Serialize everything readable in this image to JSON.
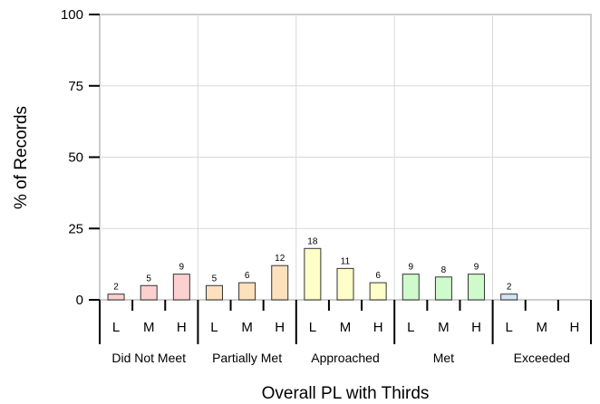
{
  "chart_data": {
    "type": "bar",
    "xlabel": "Overall PL with Thirds",
    "ylabel": "% of Records",
    "ylim": [
      0,
      100
    ],
    "yticks": [
      "0",
      "25",
      "50",
      "75",
      "100"
    ],
    "grid": true,
    "groups": [
      {
        "name": "Did Not Meet",
        "color": "#fdd0d0",
        "bars": [
          {
            "label": "L",
            "value": 2
          },
          {
            "label": "M",
            "value": 5
          },
          {
            "label": "H",
            "value": 9
          }
        ]
      },
      {
        "name": "Partially Met",
        "color": "#fde0bc",
        "bars": [
          {
            "label": "L",
            "value": 5
          },
          {
            "label": "M",
            "value": 6
          },
          {
            "label": "H",
            "value": 12
          }
        ]
      },
      {
        "name": "Approached",
        "color": "#fefec8",
        "bars": [
          {
            "label": "L",
            "value": 18
          },
          {
            "label": "M",
            "value": 11
          },
          {
            "label": "H",
            "value": 6
          }
        ]
      },
      {
        "name": "Met",
        "color": "#cffacc",
        "bars": [
          {
            "label": "L",
            "value": 9
          },
          {
            "label": "M",
            "value": 8
          },
          {
            "label": "H",
            "value": 9
          }
        ]
      },
      {
        "name": "Exceeded",
        "color": "#d6e4f8",
        "bars": [
          {
            "label": "L",
            "value": 2
          },
          {
            "label": "M",
            "value": null
          },
          {
            "label": "H",
            "value": null
          }
        ]
      }
    ]
  }
}
